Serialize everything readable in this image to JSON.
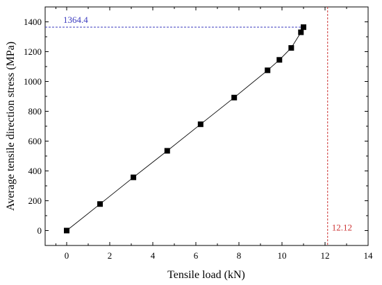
{
  "chart_data": {
    "type": "line",
    "title": "",
    "xlabel": "Tensile load (kN)",
    "ylabel": "Average tensile direction stress (MPa)",
    "xlim": [
      -1,
      14
    ],
    "ylim": [
      -100,
      1500
    ],
    "x_ticks": [
      "0",
      "2",
      "4",
      "6",
      "8",
      "10",
      "12",
      "14"
    ],
    "y_ticks": [
      "0",
      "200",
      "400",
      "600",
      "800",
      "1000",
      "1200",
      "1400"
    ],
    "grid": false,
    "legend": "none",
    "series": [
      {
        "marker": "square",
        "x": [
          0,
          1.55,
          3.1,
          4.67,
          6.22,
          7.78,
          9.33,
          9.88,
          10.43,
          10.88,
          11.0
        ],
        "y": [
          0,
          178,
          357,
          535,
          713,
          892,
          1075,
          1145,
          1225,
          1330,
          1364.4
        ]
      }
    ],
    "reference_lines": [
      {
        "orientation": "horizontal",
        "value": 1364.4,
        "label": "1364.4",
        "color": "#3b3bbf"
      },
      {
        "orientation": "vertical",
        "value": 12.12,
        "label": "12.12",
        "color": "#cc3333"
      }
    ],
    "colors": {
      "marker": "#000000",
      "line": "#000000"
    }
  }
}
